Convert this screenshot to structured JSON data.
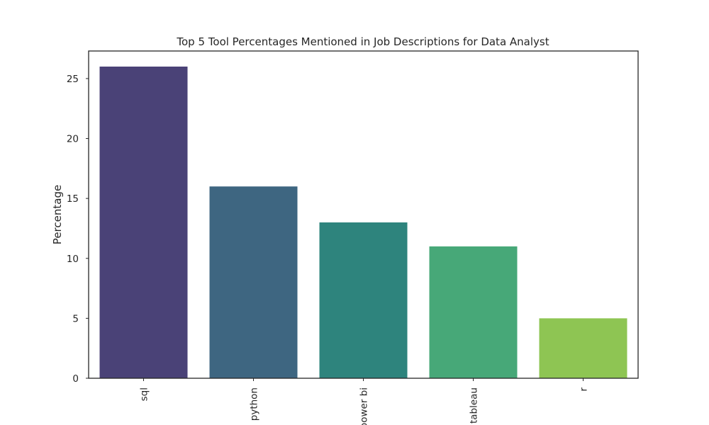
{
  "chart_data": {
    "type": "bar",
    "title": "Top 5 Tool Percentages Mentioned in Job Descriptions for Data Analyst",
    "xlabel": "",
    "ylabel": "Percentage",
    "categories": [
      "sql",
      "python",
      "power bi",
      "tableau",
      "r"
    ],
    "values": [
      26,
      16,
      13,
      11,
      5
    ],
    "colors": [
      "#4a4277",
      "#3e6681",
      "#2e847d",
      "#47a878",
      "#8ec553"
    ],
    "ylim": [
      0,
      27.3
    ],
    "yticks": [
      0,
      5,
      10,
      15,
      20,
      25
    ],
    "xtick_rotation": 90,
    "grid": false,
    "legend": "none"
  }
}
